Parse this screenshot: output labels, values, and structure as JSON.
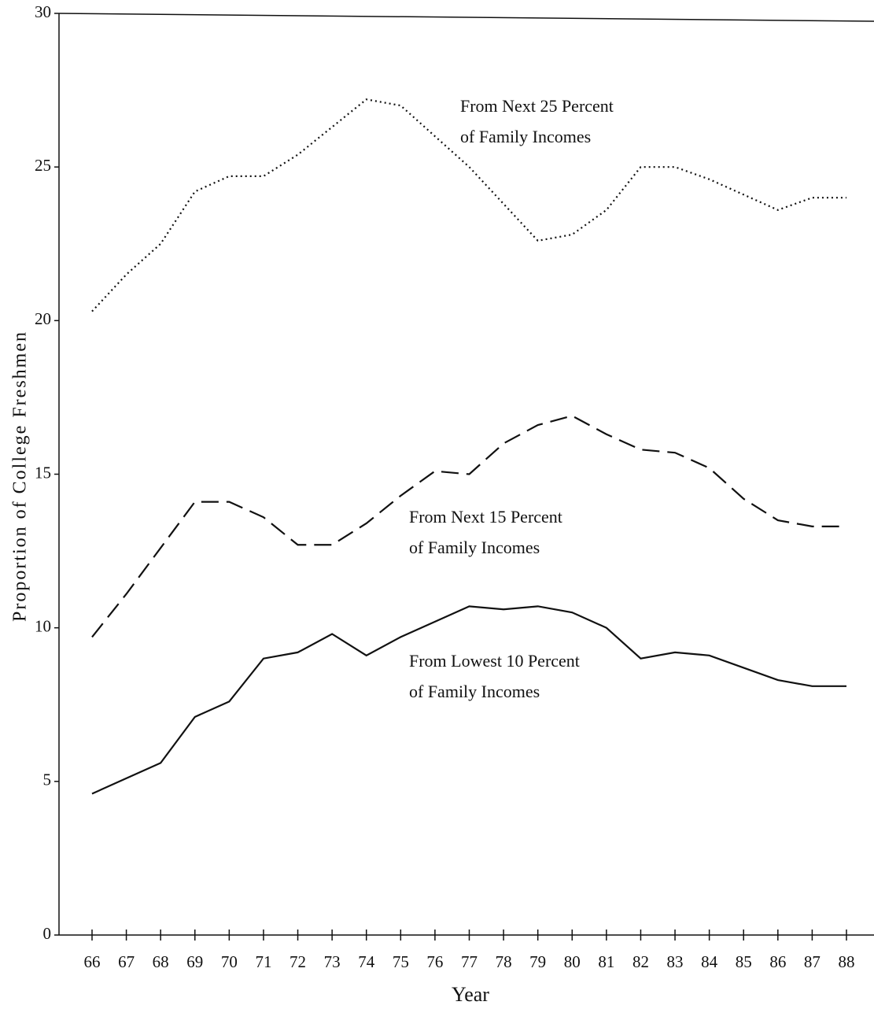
{
  "chart_data": {
    "type": "line",
    "x_label": "Year",
    "y_label": "Proportion of College Freshmen",
    "categories": [
      "66",
      "67",
      "68",
      "69",
      "70",
      "71",
      "72",
      "73",
      "74",
      "75",
      "76",
      "77",
      "78",
      "79",
      "80",
      "81",
      "82",
      "83",
      "84",
      "85",
      "86",
      "87",
      "88"
    ],
    "series": [
      {
        "label_lines": [
          "From Next 25 Percent",
          "of Family Incomes"
        ],
        "color": "#111111",
        "line_style": "dotted",
        "values": [
          20.3,
          21.5,
          22.5,
          24.2,
          24.7,
          24.7,
          25.4,
          26.3,
          27.2,
          27.0,
          26.0,
          25.0,
          23.8,
          22.6,
          22.8,
          23.6,
          25.0,
          25.0,
          24.6,
          24.1,
          23.6,
          24.0,
          24.0
        ]
      },
      {
        "label_lines": [
          "From Next 15 Percent",
          "of Family Incomes"
        ],
        "color": "#111111",
        "line_style": "dashed",
        "values": [
          9.7,
          11.1,
          12.6,
          14.1,
          14.1,
          13.6,
          12.7,
          12.7,
          13.4,
          14.3,
          15.1,
          15.0,
          16.0,
          16.6,
          16.9,
          16.3,
          15.8,
          15.7,
          15.2,
          14.2,
          13.5,
          13.3,
          13.3
        ]
      },
      {
        "label_lines": [
          "From Lowest 10 Percent",
          "of Family Incomes"
        ],
        "color": "#111111",
        "line_style": "solid",
        "values": [
          4.6,
          5.1,
          5.6,
          7.1,
          7.6,
          9.0,
          9.2,
          9.8,
          9.1,
          9.7,
          10.2,
          10.7,
          10.6,
          10.7,
          10.5,
          10.0,
          9.0,
          9.2,
          9.1,
          8.7,
          8.3,
          8.1,
          8.1
        ]
      }
    ],
    "ylim": [
      0,
      30
    ],
    "yticks": [
      0,
      5,
      10,
      15,
      20,
      25,
      30
    ],
    "grid": false
  }
}
